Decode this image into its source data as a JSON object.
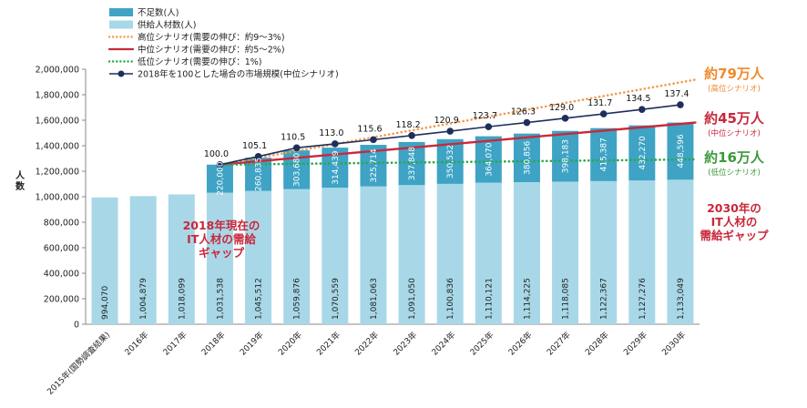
{
  "chart_data": {
    "type": "bar",
    "ylabel": "人数",
    "ylim": [
      0,
      2000000
    ],
    "yticks": [
      "0",
      "200,000",
      "400,000",
      "600,000",
      "800,000",
      "1,000,000",
      "1,200,000",
      "1,400,000",
      "1,600,000",
      "1,800,000",
      "2,000,000"
    ],
    "categories": [
      "2015年(国勢調査結果)",
      "2016年",
      "2017年",
      "2018年",
      "2019年",
      "2020年",
      "2021年",
      "2022年",
      "2023年",
      "2024年",
      "2025年",
      "2026年",
      "2027年",
      "2028年",
      "2029年",
      "2030年"
    ],
    "supply": {
      "name": "供給人材数(人)",
      "color": "#a8d8e8",
      "values": [
        994070,
        1004879,
        1018099,
        1031538,
        1045512,
        1059876,
        1070559,
        1081063,
        1091050,
        1100836,
        1110121,
        1114225,
        1118085,
        1122367,
        1127276,
        1133049
      ],
      "labels": [
        "994,070",
        "1,004,879",
        "1,018,099",
        "1,031,538",
        "1,045,512",
        "1,059,876",
        "1,070,559",
        "1,081,063",
        "1,091,050",
        "1,100,836",
        "1,110,121",
        "1,114,225",
        "1,118,085",
        "1,122,367",
        "1,127,276",
        "1,133,049"
      ]
    },
    "shortage": {
      "name": "不足数(人)",
      "color": "#3ea3c4",
      "values": [
        null,
        null,
        null,
        220000,
        260835,
        303680,
        314439,
        325714,
        337848,
        350532,
        364070,
        380856,
        398183,
        415387,
        432270,
        448596
      ],
      "labels": [
        "",
        "",
        "",
        "220,000",
        "260,835",
        "303,680",
        "314,439",
        "325,714",
        "337,848",
        "350,532",
        "364,070",
        "380,856",
        "398,183",
        "415,387",
        "432,270",
        "448,596"
      ]
    },
    "scenarios": [
      {
        "name": "高位シナリオ(需要の伸び：約9～3%)",
        "color": "#f39a4a",
        "style": "dotted",
        "start": 1251538,
        "end": 1918000
      },
      {
        "name": "中位シナリオ(需要の伸び：約5～2%)",
        "color": "#c8283b",
        "style": "solid",
        "start": 1251538,
        "end": 1581645
      },
      {
        "name": "低位シナリオ(需要の伸び：1%)",
        "color": "#2aa84a",
        "style": "dotted",
        "start": 1251538,
        "end": 1293000
      }
    ],
    "market": {
      "name": "2018年を100とした場合の市場規模(中位シナリオ)",
      "color": "#1f2f5c",
      "index": [
        null,
        null,
        null,
        100.0,
        105.1,
        110.5,
        113.0,
        115.6,
        118.2,
        120.9,
        123.7,
        126.3,
        129.0,
        131.7,
        134.5,
        137.4
      ],
      "labels": [
        "",
        "",
        "",
        "100.0",
        "105.1",
        "110.5",
        "113.0",
        "115.6",
        "118.2",
        "120.9",
        "123.7",
        "126.3",
        "129.0",
        "131.7",
        "134.5",
        "137.4"
      ]
    },
    "annotations": {
      "high_gap": "約79万人",
      "high_sub": "(高位シナリオ)",
      "high_color": "#f08a2c",
      "mid_gap": "約45万人",
      "mid_sub": "(中位シナリオ)",
      "mid_color": "#c8283b",
      "low_gap": "約16万人",
      "low_sub": "(低位シナリオ)",
      "low_color": "#3a9a3a",
      "gap2018": [
        "2018年現在の",
        "IT人材の需給",
        "ギャップ"
      ],
      "gap2030": [
        "2030年の",
        "IT人材の",
        "需給ギャップ"
      ],
      "gap_color": "#c8283b"
    },
    "legend_position": "top-left",
    "grid": false
  }
}
